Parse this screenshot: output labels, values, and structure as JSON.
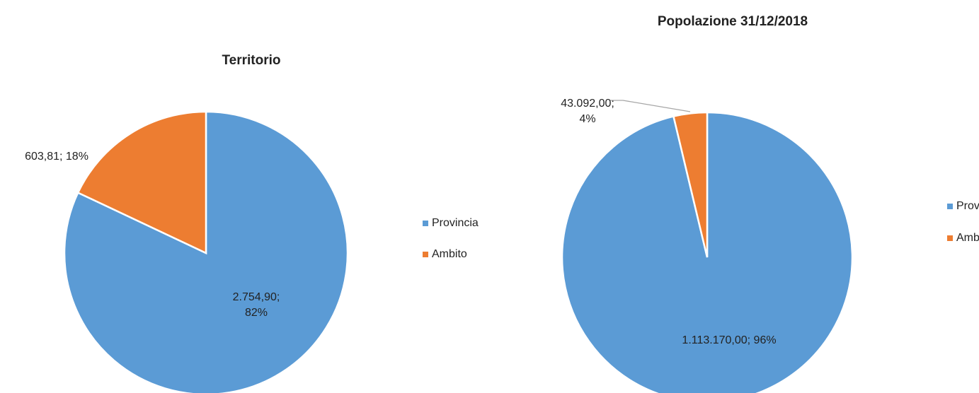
{
  "chart_data": [
    {
      "type": "pie",
      "title": "Territorio",
      "categories": [
        "Provincia",
        "Ambito"
      ],
      "values": [
        2754.9,
        603.81
      ],
      "value_labels": [
        "2.754,90; 82%",
        "603,81; 18%"
      ],
      "colors": [
        "#5b9bd5",
        "#ed7d31"
      ]
    },
    {
      "type": "pie",
      "title": "Popolazione 31/12/2018",
      "categories": [
        "Provincia",
        "Ambito"
      ],
      "values": [
        1113170.0,
        43092.0
      ],
      "value_labels": [
        "1.113.170,00; 96%",
        "43.092,00; 4%"
      ],
      "colors": [
        "#5b9bd5",
        "#ed7d31"
      ]
    }
  ]
}
